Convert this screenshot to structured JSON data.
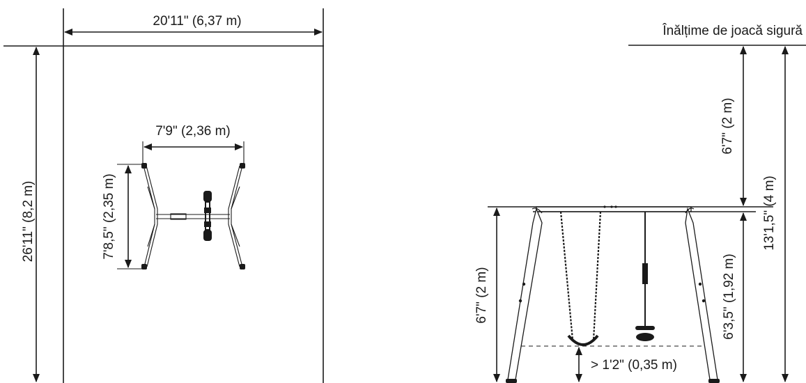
{
  "left_plan": {
    "zone_width": "20'11\" (6,37 m)",
    "zone_length": "26'11\" (8,2 m)",
    "frame_width": "7'9\" (2,36 m)",
    "frame_depth": "7'8,5\" (2,35 m)"
  },
  "right_elevation": {
    "safe_zone_title": "Înălțime de joacă sigură",
    "upper_clearance": "6'7\" (2 m)",
    "total_height": "13'1,5\" (4 m)",
    "frame_height": "6'3,5\" (1,92 m)",
    "seat_height_left": "6'7\" (2 m)",
    "ground_clearance": "> 1'2\" (0,35 m)"
  }
}
